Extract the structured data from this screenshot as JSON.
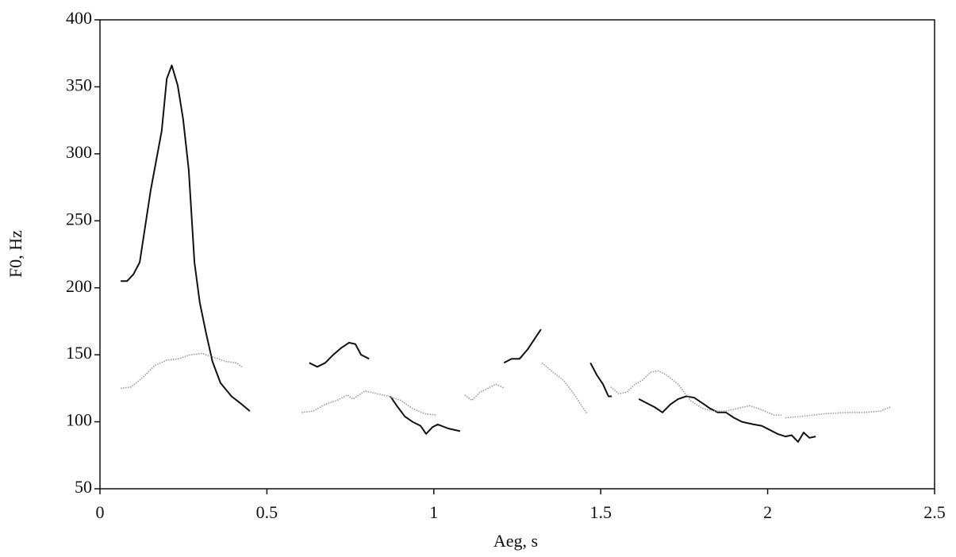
{
  "chart_data": {
    "type": "line",
    "x_label": "Aeg, s",
    "y_label": "F0, Hz",
    "xlim": [
      0,
      2.5
    ],
    "xticks": [
      0,
      0.5,
      1,
      1.5,
      2,
      2.5
    ],
    "ylim": [
      50,
      400
    ],
    "yticks": [
      50,
      100,
      150,
      200,
      250,
      300,
      350,
      400
    ],
    "grid": false,
    "series": [
      {
        "color": "#111111",
        "style": "solid",
        "x": [
          0.062,
          0.081,
          0.1,
          0.119,
          0.152,
          0.185,
          0.2,
          0.215,
          0.233,
          0.249,
          0.266,
          0.283,
          0.299,
          0.318,
          0.337,
          0.361,
          0.394,
          0.425,
          0.449,
          null,
          0.627,
          0.651,
          0.675,
          0.699,
          0.722,
          0.746,
          0.765,
          0.782,
          0.806,
          null,
          0.87,
          0.889,
          0.913,
          0.936,
          0.96,
          0.977,
          0.996,
          1.012,
          1.043,
          1.079,
          null,
          1.21,
          1.233,
          1.257,
          1.281,
          1.305,
          1.321,
          null,
          1.469,
          1.488,
          1.507,
          1.523,
          1.533,
          null,
          1.614,
          1.637,
          1.661,
          1.685,
          1.709,
          1.732,
          1.756,
          1.78,
          1.804,
          1.827,
          1.851,
          1.875,
          1.899,
          1.923,
          1.958,
          1.982,
          2.006,
          2.029,
          2.053,
          2.072,
          2.091,
          2.108,
          2.125,
          2.144
        ],
        "values": [
          205,
          205,
          210,
          219,
          273,
          317,
          356,
          366,
          351,
          326,
          288,
          219,
          189,
          166,
          145,
          129,
          119,
          113,
          108,
          null,
          144,
          141,
          144,
          150,
          155,
          159,
          158,
          150,
          147,
          null,
          119,
          112,
          104,
          100,
          97,
          91,
          96,
          98,
          95,
          93,
          null,
          144,
          147,
          147,
          154,
          163,
          169,
          null,
          144,
          135,
          128,
          119,
          119,
          null,
          117,
          114,
          111,
          107,
          113,
          117,
          119,
          118,
          114,
          110,
          107,
          107,
          103,
          100,
          98,
          97,
          94,
          91,
          89,
          90,
          85,
          92,
          88,
          89
        ]
      },
      {
        "color": "#999999",
        "style": "dotted",
        "x": [
          0.062,
          0.093,
          0.128,
          0.164,
          0.2,
          0.235,
          0.271,
          0.306,
          0.342,
          0.378,
          0.409,
          0.425,
          null,
          0.604,
          0.639,
          0.675,
          0.71,
          0.741,
          0.758,
          0.794,
          0.829,
          0.865,
          0.901,
          0.936,
          0.972,
          1.008,
          null,
          1.093,
          1.114,
          1.138,
          1.162,
          1.186,
          1.212,
          null,
          1.324,
          1.352,
          1.388,
          1.416,
          1.44,
          1.459,
          null,
          1.53,
          1.554,
          1.578,
          1.602,
          1.625,
          1.649,
          1.673,
          1.697,
          1.732,
          1.768,
          1.804,
          1.839,
          1.875,
          1.911,
          1.946,
          1.982,
          2.018,
          2.041,
          null,
          2.053,
          2.101,
          2.172,
          2.243,
          2.291,
          2.338,
          2.367
        ],
        "values": [
          125,
          126,
          133,
          142,
          146,
          147,
          150,
          151,
          148,
          145,
          144,
          141,
          null,
          107,
          108,
          113,
          116,
          120,
          117,
          123,
          121,
          119,
          116,
          110,
          106,
          105,
          null,
          120,
          116,
          122,
          125,
          128,
          125,
          null,
          144,
          138,
          131,
          122,
          113,
          106,
          null,
          126,
          121,
          122,
          128,
          131,
          137,
          138,
          135,
          128,
          116,
          110,
          108,
          108,
          110,
          112,
          109,
          105,
          105,
          null,
          103,
          104,
          106,
          107,
          107,
          108,
          111
        ]
      }
    ]
  }
}
